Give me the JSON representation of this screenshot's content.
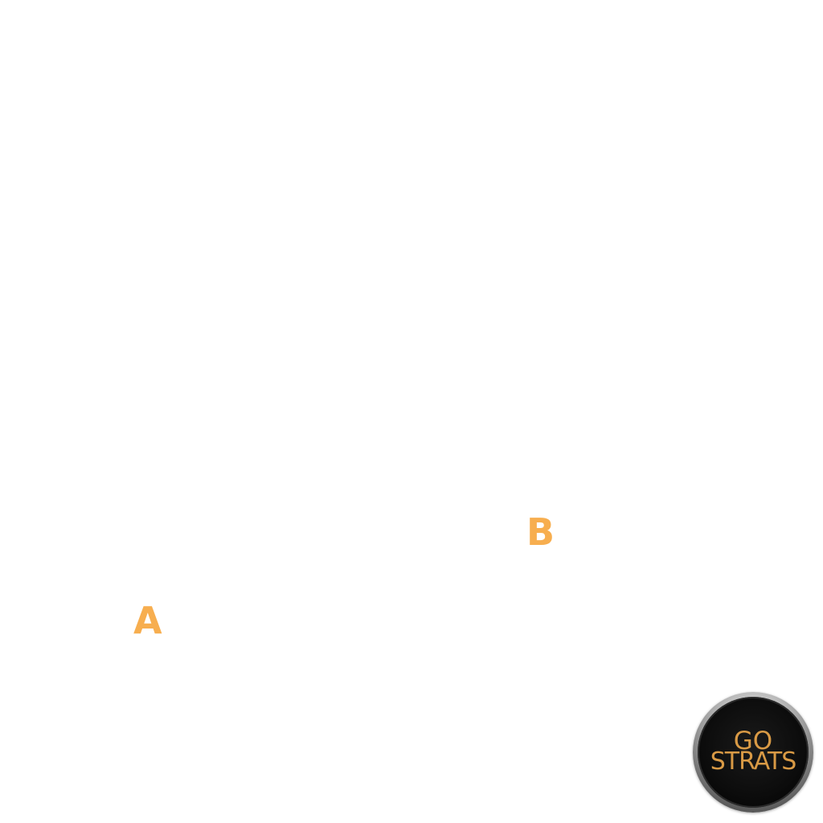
{
  "map": {
    "sites": [
      {
        "label": "A"
      },
      {
        "label": "B"
      }
    ]
  },
  "logo": {
    "line1": "GO",
    "line2": "STRATS"
  },
  "colors": {
    "site_label": "#f7ae4f",
    "logo_text": "#d99a45",
    "logo_ring": "#bdbdbd",
    "logo_fill": "#0c0c0c",
    "background": "#ffffff"
  }
}
